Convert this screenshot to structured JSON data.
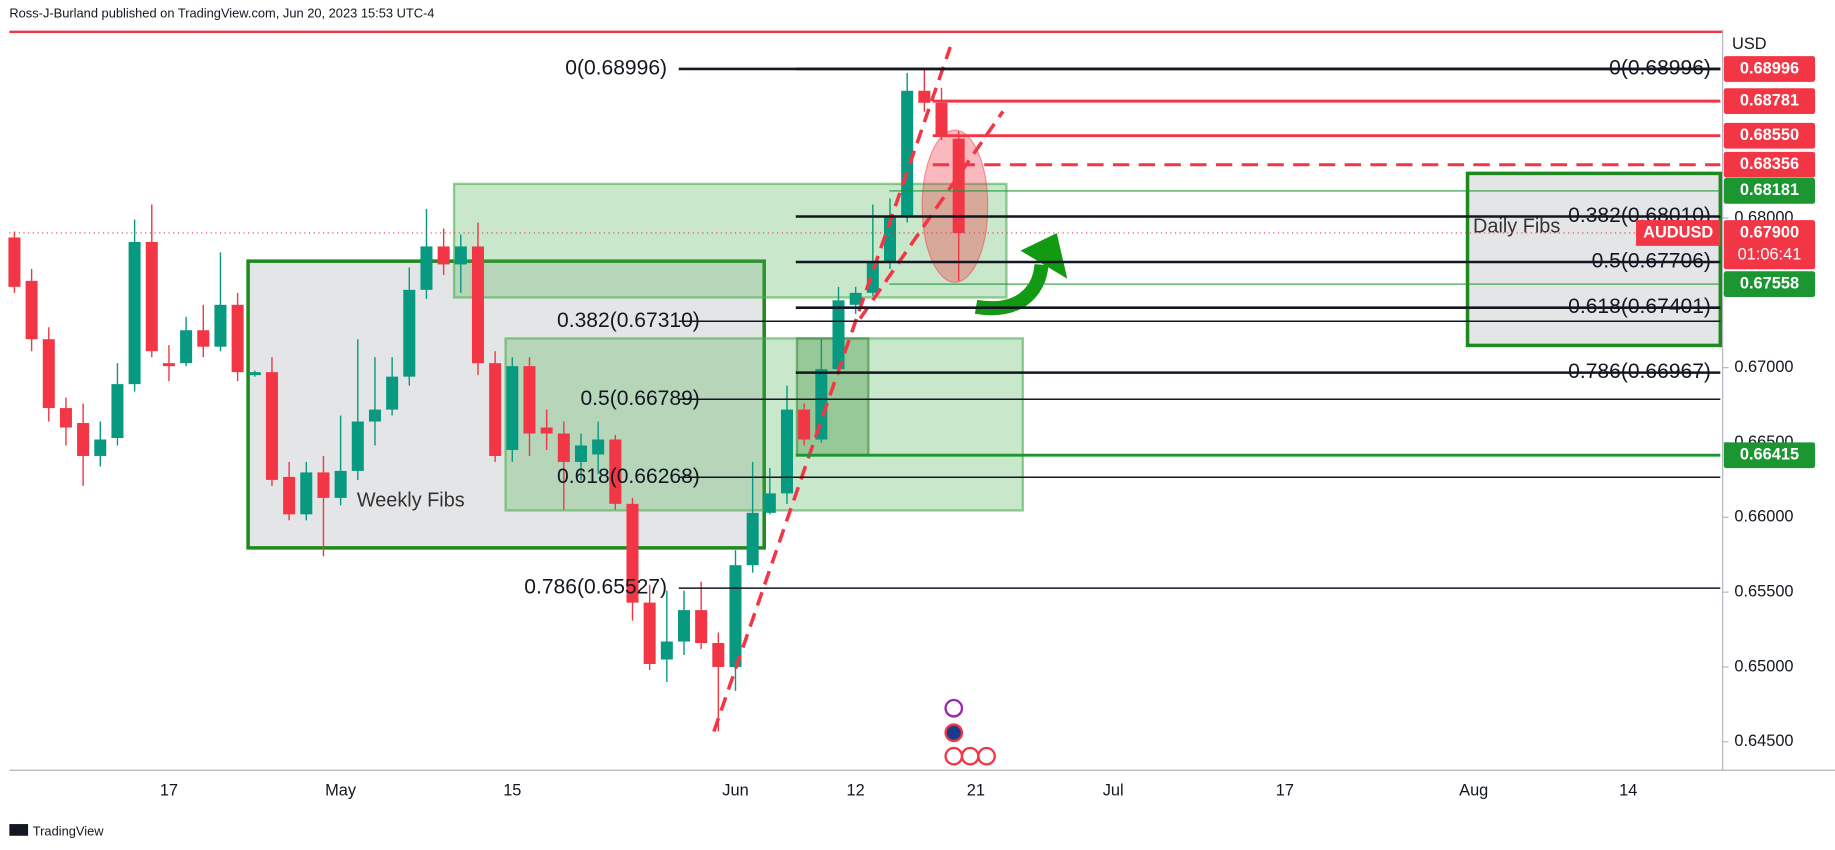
{
  "header": "Ross-J-Burland published on TradingView.com, Jun 20, 2023 15:53 UTC-4",
  "footer": "TradingView",
  "chart_data": {
    "type": "candlestick",
    "symbol": "AUDUSD",
    "currency": "USD",
    "countdown": "01:06:41",
    "last": {
      "value": 0.679,
      "label": "0.67900"
    },
    "up_color": "#089981",
    "down_color": "#f23645",
    "categories": [
      null,
      null,
      null,
      null,
      null,
      null,
      null,
      null,
      null,
      "17",
      null,
      null,
      null,
      null,
      null,
      null,
      null,
      null,
      null,
      "May",
      null,
      null,
      null,
      null,
      null,
      null,
      null,
      null,
      null,
      "15",
      null,
      null,
      null,
      null,
      null,
      null,
      null,
      null,
      null,
      null,
      null,
      null,
      "Jun",
      null,
      null,
      null,
      null,
      null,
      null,
      "12",
      null,
      null,
      null,
      null,
      null,
      null,
      "21",
      null,
      null,
      null,
      null,
      null,
      null,
      null,
      "Jul",
      null,
      null,
      null,
      null,
      null,
      null,
      null,
      null,
      null,
      "17",
      null,
      null,
      null,
      null,
      null,
      null,
      null,
      null,
      null,
      null,
      "Aug",
      null,
      null,
      null,
      null,
      null,
      null,
      null,
      null,
      "14",
      null,
      null,
      null,
      null,
      null
    ],
    "open": [
      0.6787,
      0.6758,
      0.6719,
      0.6673,
      0.6663,
      0.6641,
      0.6653,
      0.6689,
      0.6784,
      0.6703,
      0.6703,
      0.6725,
      0.6714,
      0.6742,
      0.6695,
      0.6697,
      0.6627,
      0.6602,
      0.663,
      0.6613,
      0.6631,
      0.6664,
      0.6672,
      0.6694,
      0.6752,
      0.6781,
      0.6769,
      0.6781,
      0.6703,
      0.6645,
      0.6701,
      0.666,
      0.6656,
      0.6637,
      0.6642,
      0.6652,
      0.6609,
      0.6543,
      0.6505,
      0.6517,
      0.6538,
      0.6516,
      0.65,
      0.6568,
      0.6603,
      0.6616,
      0.6672,
      0.6652,
      0.6699,
      0.6742,
      0.675,
      0.677,
      0.6801,
      0.6885,
      0.6877,
      0.6853,
      null,
      null,
      null,
      null,
      null,
      null,
      null,
      null,
      null,
      null,
      null,
      null,
      null,
      null,
      null,
      null,
      null,
      null,
      null,
      null,
      null,
      null,
      null,
      null,
      null,
      null,
      null,
      null,
      null,
      null,
      null,
      null,
      null,
      null,
      null,
      null,
      null,
      null,
      null,
      null,
      null,
      null,
      null,
      null
    ],
    "high": [
      0.6791,
      0.6766,
      0.6727,
      0.668,
      0.6676,
      0.6664,
      0.6703,
      0.6799,
      0.6809,
      0.6715,
      0.6734,
      0.6742,
      0.6777,
      0.675,
      0.6698,
      0.6707,
      0.6637,
      0.6637,
      0.6641,
      0.6668,
      0.6719,
      0.6707,
      0.6707,
      0.6767,
      0.6806,
      0.6793,
      0.6789,
      0.6797,
      0.6711,
      0.6707,
      0.6707,
      0.6672,
      0.6664,
      0.6656,
      0.6664,
      0.6655,
      0.6613,
      0.6555,
      0.6551,
      0.6551,
      0.6557,
      0.6523,
      0.6578,
      0.6637,
      0.6633,
      0.6688,
      0.6676,
      0.6719,
      0.6754,
      0.6754,
      0.6809,
      0.6813,
      0.6897,
      0.69,
      0.6887,
      0.6858,
      null,
      null,
      null,
      null,
      null,
      null,
      null,
      null,
      null,
      null,
      null,
      null,
      null,
      null,
      null,
      null,
      null,
      null,
      null,
      null,
      null,
      null,
      null,
      null,
      null,
      null,
      null,
      null,
      null,
      null,
      null,
      null,
      null,
      null,
      null,
      null,
      null,
      null,
      null,
      null,
      null,
      null,
      null,
      null
    ],
    "low": [
      0.675,
      0.6711,
      0.6664,
      0.6648,
      0.6621,
      0.6634,
      0.6648,
      0.6684,
      0.6707,
      0.6691,
      0.6701,
      0.6707,
      0.6711,
      0.6691,
      0.6694,
      0.6621,
      0.6598,
      0.6598,
      0.6574,
      0.6608,
      0.6625,
      0.6648,
      0.6668,
      0.6688,
      0.6746,
      0.6762,
      0.675,
      0.6695,
      0.6637,
      0.6637,
      0.6641,
      0.6645,
      0.6605,
      0.6625,
      0.6629,
      0.6605,
      0.6531,
      0.6498,
      0.649,
      0.6508,
      0.6512,
      0.6457,
      0.6484,
      0.6563,
      0.6602,
      0.6609,
      0.6648,
      0.665,
      0.6695,
      0.6736,
      0.6748,
      0.6766,
      0.6797,
      0.6871,
      0.6852,
      0.6758,
      null,
      null,
      null,
      null,
      null,
      null,
      null,
      null,
      null,
      null,
      null,
      null,
      null,
      null,
      null,
      null,
      null,
      null,
      null,
      null,
      null,
      null,
      null,
      null,
      null,
      null,
      null,
      null,
      null,
      null,
      null,
      null,
      null,
      null,
      null,
      null,
      null,
      null,
      null,
      null,
      null,
      null,
      null,
      null
    ],
    "close": [
      0.6754,
      0.6719,
      0.6673,
      0.666,
      0.6641,
      0.6652,
      0.6689,
      0.6784,
      0.6711,
      0.6701,
      0.6725,
      0.6714,
      0.6742,
      0.6697,
      0.6697,
      0.6625,
      0.6602,
      0.663,
      0.6613,
      0.6631,
      0.6664,
      0.6672,
      0.6694,
      0.6752,
      0.6781,
      0.6769,
      0.6781,
      0.6703,
      0.6641,
      0.6701,
      0.6656,
      0.6656,
      0.6637,
      0.6648,
      0.6652,
      0.6609,
      0.6543,
      0.6502,
      0.6517,
      0.6538,
      0.6516,
      0.65,
      0.6568,
      0.6603,
      0.6616,
      0.6672,
      0.6652,
      0.6699,
      0.6745,
      0.675,
      0.677,
      0.6801,
      0.6885,
      0.6877,
      0.6855,
      0.679,
      null,
      null,
      null,
      null,
      null,
      null,
      null,
      null,
      null,
      null,
      null,
      null,
      null,
      null,
      null,
      null,
      null,
      null,
      null,
      null,
      null,
      null,
      null,
      null,
      null,
      null,
      null,
      null,
      null,
      null,
      null,
      null,
      null,
      null,
      null,
      null,
      null,
      null,
      null,
      null,
      null,
      null,
      null,
      null
    ],
    "ylim": [
      0.6431,
      0.6926
    ],
    "yticks": [
      {
        "value": 0.645,
        "label": "0.64500"
      },
      {
        "value": 0.65,
        "label": "0.65000"
      },
      {
        "value": 0.655,
        "label": "0.65500"
      },
      {
        "value": 0.66,
        "label": "0.66000"
      },
      {
        "value": 0.665,
        "label": "0.66500"
      },
      {
        "value": 0.67,
        "label": "0.67000"
      },
      {
        "value": 0.675,
        "label": "0.67500"
      },
      {
        "value": 0.68,
        "label": "0.68000"
      }
    ],
    "levels": [
      {
        "value": 0.68996,
        "label": "0.68996",
        "color": "#f23645"
      },
      {
        "value": 0.68781,
        "label": "0.68781",
        "color": "#f23645",
        "line": "solid"
      },
      {
        "value": 0.6855,
        "label": "0.68550",
        "color": "#f23645",
        "line": "solid"
      },
      {
        "value": 0.68356,
        "label": "0.68356",
        "color": "#f23645",
        "line": "dashed"
      },
      {
        "value": 0.68181,
        "label": "0.68181",
        "color": "#1b9630",
        "line": "solid"
      },
      {
        "value": 0.67558,
        "label": "0.67558",
        "color": "#1b9630",
        "line": "solid"
      },
      {
        "value": 0.66415,
        "label": "0.66415",
        "color": "#1b9630",
        "line": "solid"
      }
    ],
    "weekly_fibs": {
      "name": "Weekly Fibs",
      "levels": [
        {
          "value": 0.68996,
          "label": "0(0.68996)"
        },
        {
          "value": 0.6731,
          "label": "0.382(0.67310)"
        },
        {
          "value": 0.66789,
          "label": "0.5(0.66789)"
        },
        {
          "value": 0.66268,
          "label": "0.618(0.66268)"
        },
        {
          "value": 0.65527,
          "label": "0.786(0.65527)"
        }
      ]
    },
    "daily_fibs": {
      "name": "Daily Fibs",
      "levels": [
        {
          "value": 0.68996,
          "label": "0(0.68996)"
        },
        {
          "value": 0.6801,
          "label": "0.382(0.68010)"
        },
        {
          "value": 0.67706,
          "label": "0.5(0.67706)"
        },
        {
          "value": 0.67401,
          "label": "0.618(0.67401)"
        },
        {
          "value": 0.66967,
          "label": "0.786(0.66967)"
        }
      ]
    }
  }
}
